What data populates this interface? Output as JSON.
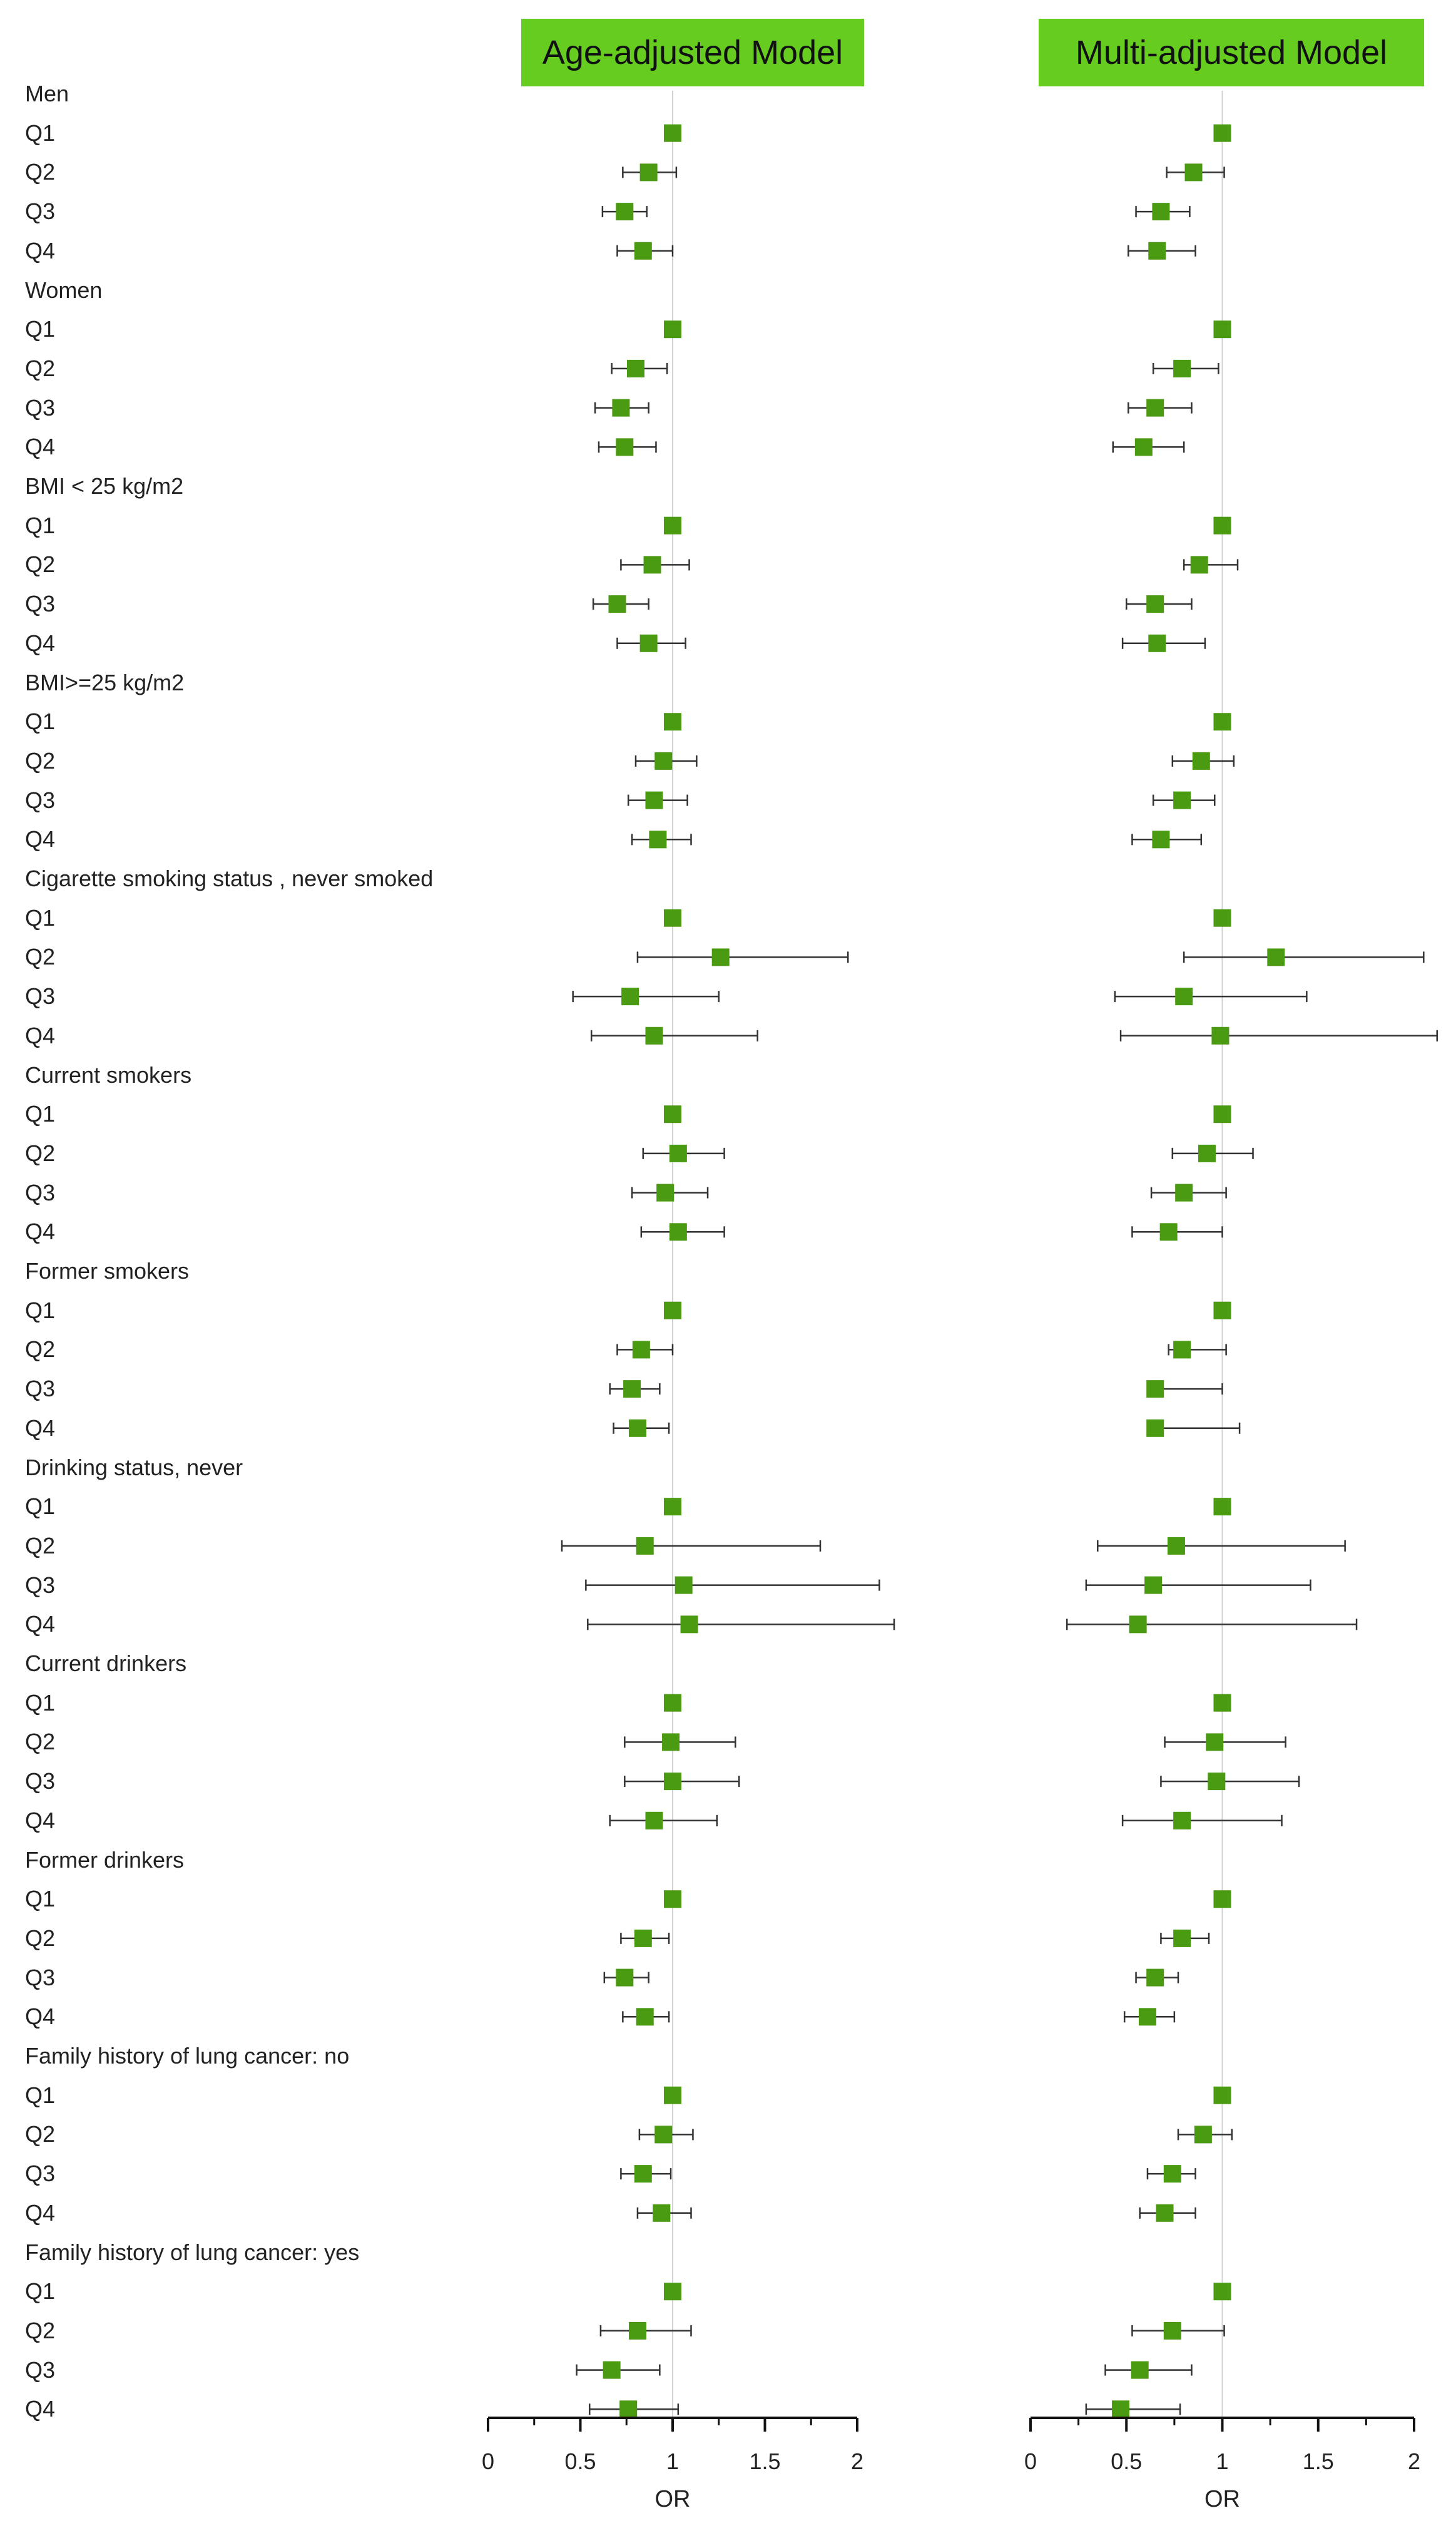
{
  "colors": {
    "marker": "#4a9a12",
    "title_bg": "#66cc1f",
    "ref_line": "#d2d2d2",
    "whisker": "#333333"
  },
  "chart_data": {
    "type": "forest",
    "reference_value": 1,
    "grid": false,
    "row_labels": [
      {
        "text": "Men",
        "kind": "group"
      },
      {
        "text": "Q1",
        "kind": "item"
      },
      {
        "text": "Q2",
        "kind": "item"
      },
      {
        "text": "Q3",
        "kind": "item"
      },
      {
        "text": "Q4",
        "kind": "item"
      },
      {
        "text": "Women",
        "kind": "group"
      },
      {
        "text": "Q1",
        "kind": "item"
      },
      {
        "text": "Q2",
        "kind": "item"
      },
      {
        "text": "Q3",
        "kind": "item"
      },
      {
        "text": "Q4",
        "kind": "item"
      },
      {
        "text": "BMI < 25 kg/m2",
        "kind": "group"
      },
      {
        "text": "Q1",
        "kind": "item"
      },
      {
        "text": "Q2",
        "kind": "item"
      },
      {
        "text": "Q3",
        "kind": "item"
      },
      {
        "text": "Q4",
        "kind": "item"
      },
      {
        "text": "BMI>=25 kg/m2",
        "kind": "group"
      },
      {
        "text": "Q1",
        "kind": "item"
      },
      {
        "text": "Q2",
        "kind": "item"
      },
      {
        "text": "Q3",
        "kind": "item"
      },
      {
        "text": "Q4",
        "kind": "item"
      },
      {
        "text": "Cigarette smoking status , never smoked",
        "kind": "group"
      },
      {
        "text": "Q1",
        "kind": "item"
      },
      {
        "text": "Q2",
        "kind": "item"
      },
      {
        "text": "Q3",
        "kind": "item"
      },
      {
        "text": "Q4",
        "kind": "item"
      },
      {
        "text": "Current smokers",
        "kind": "group"
      },
      {
        "text": "Q1",
        "kind": "item"
      },
      {
        "text": "Q2",
        "kind": "item"
      },
      {
        "text": "Q3",
        "kind": "item"
      },
      {
        "text": "Q4",
        "kind": "item"
      },
      {
        "text": "Former smokers",
        "kind": "group"
      },
      {
        "text": "Q1",
        "kind": "item"
      },
      {
        "text": "Q2",
        "kind": "item"
      },
      {
        "text": "Q3",
        "kind": "item"
      },
      {
        "text": "Q4",
        "kind": "item"
      },
      {
        "text": "Drinking status, never",
        "kind": "group"
      },
      {
        "text": "Q1",
        "kind": "item"
      },
      {
        "text": "Q2",
        "kind": "item"
      },
      {
        "text": "Q3",
        "kind": "item"
      },
      {
        "text": "Q4",
        "kind": "item"
      },
      {
        "text": "Current drinkers",
        "kind": "group"
      },
      {
        "text": "Q1",
        "kind": "item"
      },
      {
        "text": "Q2",
        "kind": "item"
      },
      {
        "text": "Q3",
        "kind": "item"
      },
      {
        "text": "Q4",
        "kind": "item"
      },
      {
        "text": "Former drinkers",
        "kind": "group"
      },
      {
        "text": "Q1",
        "kind": "item"
      },
      {
        "text": "Q2",
        "kind": "item"
      },
      {
        "text": "Q3",
        "kind": "item"
      },
      {
        "text": "Q4",
        "kind": "item"
      },
      {
        "text": "Family history of lung cancer: no",
        "kind": "group"
      },
      {
        "text": "Q1",
        "kind": "item"
      },
      {
        "text": "Q2",
        "kind": "item"
      },
      {
        "text": "Q3",
        "kind": "item"
      },
      {
        "text": "Q4",
        "kind": "item"
      },
      {
        "text": "Family history of lung cancer: yes",
        "kind": "group"
      },
      {
        "text": "Q1",
        "kind": "item"
      },
      {
        "text": "Q2",
        "kind": "item"
      },
      {
        "text": "Q3",
        "kind": "item"
      },
      {
        "text": "Q4",
        "kind": "item"
      }
    ],
    "panels": [
      {
        "title": "Age-adjusted Model",
        "xlabel": "OR",
        "xlim": [
          0,
          2
        ],
        "xticks": [
          "0",
          "0.5",
          "1",
          "1.5",
          "2"
        ],
        "estimates": [
          {
            "or": 1.0
          },
          {
            "or": 0.87,
            "lo": 0.73,
            "hi": 1.02
          },
          {
            "or": 0.74,
            "lo": 0.62,
            "hi": 0.86
          },
          {
            "or": 0.84,
            "lo": 0.7,
            "hi": 1.0
          },
          {
            "or": 1.0
          },
          {
            "or": 0.8,
            "lo": 0.67,
            "hi": 0.97
          },
          {
            "or": 0.72,
            "lo": 0.58,
            "hi": 0.87
          },
          {
            "or": 0.74,
            "lo": 0.6,
            "hi": 0.91
          },
          {
            "or": 1.0
          },
          {
            "or": 0.89,
            "lo": 0.72,
            "hi": 1.09
          },
          {
            "or": 0.7,
            "lo": 0.57,
            "hi": 0.87
          },
          {
            "or": 0.87,
            "lo": 0.7,
            "hi": 1.07
          },
          {
            "or": 1.0
          },
          {
            "or": 0.95,
            "lo": 0.8,
            "hi": 1.13
          },
          {
            "or": 0.9,
            "lo": 0.76,
            "hi": 1.08
          },
          {
            "or": 0.92,
            "lo": 0.78,
            "hi": 1.1
          },
          {
            "or": 1.0
          },
          {
            "or": 1.26,
            "lo": 0.81,
            "hi": 1.95
          },
          {
            "or": 0.77,
            "lo": 0.46,
            "hi": 1.25
          },
          {
            "or": 0.9,
            "lo": 0.56,
            "hi": 1.46
          },
          {
            "or": 1.0
          },
          {
            "or": 1.03,
            "lo": 0.84,
            "hi": 1.28
          },
          {
            "or": 0.96,
            "lo": 0.78,
            "hi": 1.19
          },
          {
            "or": 1.03,
            "lo": 0.83,
            "hi": 1.28
          },
          {
            "or": 1.0
          },
          {
            "or": 0.83,
            "lo": 0.7,
            "hi": 1.0
          },
          {
            "or": 0.78,
            "lo": 0.66,
            "hi": 0.93
          },
          {
            "or": 0.81,
            "lo": 0.68,
            "hi": 0.98
          },
          {
            "or": 1.0
          },
          {
            "or": 0.85,
            "lo": 0.4,
            "hi": 1.8
          },
          {
            "or": 1.06,
            "lo": 0.53,
            "hi": 2.12
          },
          {
            "or": 1.09,
            "lo": 0.54,
            "hi": 2.2
          },
          {
            "or": 1.0
          },
          {
            "or": 0.99,
            "lo": 0.74,
            "hi": 1.34
          },
          {
            "or": 1.0,
            "lo": 0.74,
            "hi": 1.36
          },
          {
            "or": 0.9,
            "lo": 0.66,
            "hi": 1.24
          },
          {
            "or": 1.0
          },
          {
            "or": 0.84,
            "lo": 0.72,
            "hi": 0.98
          },
          {
            "or": 0.74,
            "lo": 0.63,
            "hi": 0.87
          },
          {
            "or": 0.85,
            "lo": 0.73,
            "hi": 0.98
          },
          {
            "or": 1.0
          },
          {
            "or": 0.95,
            "lo": 0.82,
            "hi": 1.11
          },
          {
            "or": 0.84,
            "lo": 0.72,
            "hi": 0.99
          },
          {
            "or": 0.94,
            "lo": 0.81,
            "hi": 1.1
          },
          {
            "or": 1.0
          },
          {
            "or": 0.81,
            "lo": 0.61,
            "hi": 1.1
          },
          {
            "or": 0.67,
            "lo": 0.48,
            "hi": 0.93
          },
          {
            "or": 0.76,
            "lo": 0.55,
            "hi": 1.03
          }
        ]
      },
      {
        "title": "Multi-adjusted Model",
        "xlabel": "OR",
        "xlim": [
          0,
          2
        ],
        "xticks": [
          "0",
          "0.5",
          "1",
          "1.5",
          "2"
        ],
        "estimates": [
          {
            "or": 1.0
          },
          {
            "or": 0.85,
            "lo": 0.71,
            "hi": 1.01
          },
          {
            "or": 0.68,
            "lo": 0.55,
            "hi": 0.83
          },
          {
            "or": 0.66,
            "lo": 0.51,
            "hi": 0.86
          },
          {
            "or": 1.0
          },
          {
            "or": 0.79,
            "lo": 0.64,
            "hi": 0.98
          },
          {
            "or": 0.65,
            "lo": 0.51,
            "hi": 0.84
          },
          {
            "or": 0.59,
            "lo": 0.43,
            "hi": 0.8
          },
          {
            "or": 1.0
          },
          {
            "or": 0.88,
            "lo": 0.8,
            "hi": 1.08
          },
          {
            "or": 0.65,
            "lo": 0.5,
            "hi": 0.84
          },
          {
            "or": 0.66,
            "lo": 0.48,
            "hi": 0.91
          },
          {
            "or": 1.0
          },
          {
            "or": 0.89,
            "lo": 0.74,
            "hi": 1.06
          },
          {
            "or": 0.79,
            "lo": 0.64,
            "hi": 0.96
          },
          {
            "or": 0.68,
            "lo": 0.53,
            "hi": 0.89
          },
          {
            "or": 1.0
          },
          {
            "or": 1.28,
            "lo": 0.8,
            "hi": 2.05
          },
          {
            "or": 0.8,
            "lo": 0.44,
            "hi": 1.44
          },
          {
            "or": 0.99,
            "lo": 0.47,
            "hi": 2.12
          },
          {
            "or": 1.0
          },
          {
            "or": 0.92,
            "lo": 0.74,
            "hi": 1.16
          },
          {
            "or": 0.8,
            "lo": 0.63,
            "hi": 1.02
          },
          {
            "or": 0.72,
            "lo": 0.53,
            "hi": 1.0
          },
          {
            "or": 1.0
          },
          {
            "or": 0.79,
            "lo": 0.72,
            "hi": 1.02
          },
          {
            "or": 0.65,
            "lo": 0.65,
            "hi": 1.0
          },
          {
            "or": 0.65,
            "lo": 0.65,
            "hi": 1.09
          },
          {
            "or": 1.0
          },
          {
            "or": 0.76,
            "lo": 0.35,
            "hi": 1.64
          },
          {
            "or": 0.64,
            "lo": 0.29,
            "hi": 1.46
          },
          {
            "or": 0.56,
            "lo": 0.19,
            "hi": 1.7
          },
          {
            "or": 1.0
          },
          {
            "or": 0.96,
            "lo": 0.7,
            "hi": 1.33
          },
          {
            "or": 0.97,
            "lo": 0.68,
            "hi": 1.4
          },
          {
            "or": 0.79,
            "lo": 0.48,
            "hi": 1.31
          },
          {
            "or": 1.0
          },
          {
            "or": 0.79,
            "lo": 0.68,
            "hi": 0.93
          },
          {
            "or": 0.65,
            "lo": 0.55,
            "hi": 0.77
          },
          {
            "or": 0.61,
            "lo": 0.49,
            "hi": 0.75
          },
          {
            "or": 1.0
          },
          {
            "or": 0.9,
            "lo": 0.77,
            "hi": 1.05
          },
          {
            "or": 0.74,
            "lo": 0.61,
            "hi": 0.86
          },
          {
            "or": 0.7,
            "lo": 0.57,
            "hi": 0.86
          },
          {
            "or": 1.0
          },
          {
            "or": 0.74,
            "lo": 0.53,
            "hi": 1.01
          },
          {
            "or": 0.57,
            "lo": 0.39,
            "hi": 0.84
          },
          {
            "or": 0.47,
            "lo": 0.29,
            "hi": 0.78
          }
        ]
      }
    ]
  }
}
